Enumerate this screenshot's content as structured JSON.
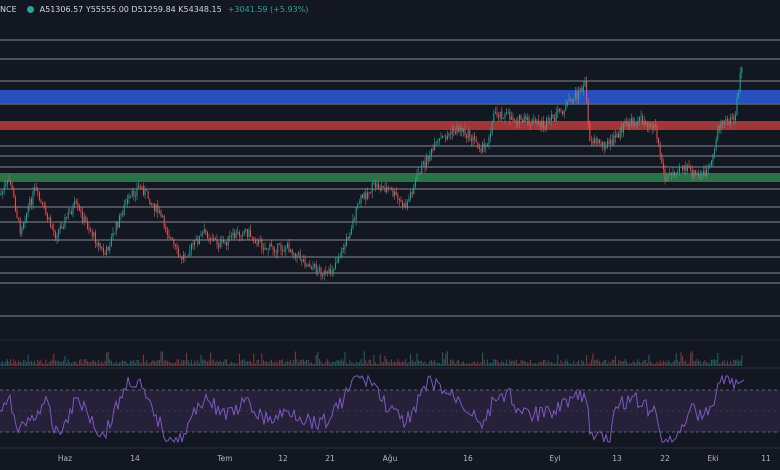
{
  "header": {
    "symbol_fragment": "NCE",
    "ohlc_text": "A51306.57  Y55555.00  D51259.84  K54348.15",
    "change_text": "+3041.59 (+5.93%)"
  },
  "colors": {
    "background": "#131722",
    "up": "#26a69a",
    "down": "#ef5350",
    "blue_zone": "#2a5bd7",
    "red_zone": "#c0392b",
    "green_zone": "#2e8b57",
    "hline": "#c9ccd4",
    "rsi_line": "#7e57c2",
    "rsi_band": "#2a2440"
  },
  "x_axis": {
    "ticks": [
      {
        "label": "Haz",
        "x": 65
      },
      {
        "label": "14",
        "x": 135
      },
      {
        "label": "Tem",
        "x": 225
      },
      {
        "label": "12",
        "x": 283
      },
      {
        "label": "21",
        "x": 330
      },
      {
        "label": "Ağu",
        "x": 390
      },
      {
        "label": "16",
        "x": 468
      },
      {
        "label": "Eyl",
        "x": 555
      },
      {
        "label": "13",
        "x": 617
      },
      {
        "label": "22",
        "x": 665
      },
      {
        "label": "Eki",
        "x": 713
      },
      {
        "label": "11",
        "x": 766
      }
    ]
  }
}
